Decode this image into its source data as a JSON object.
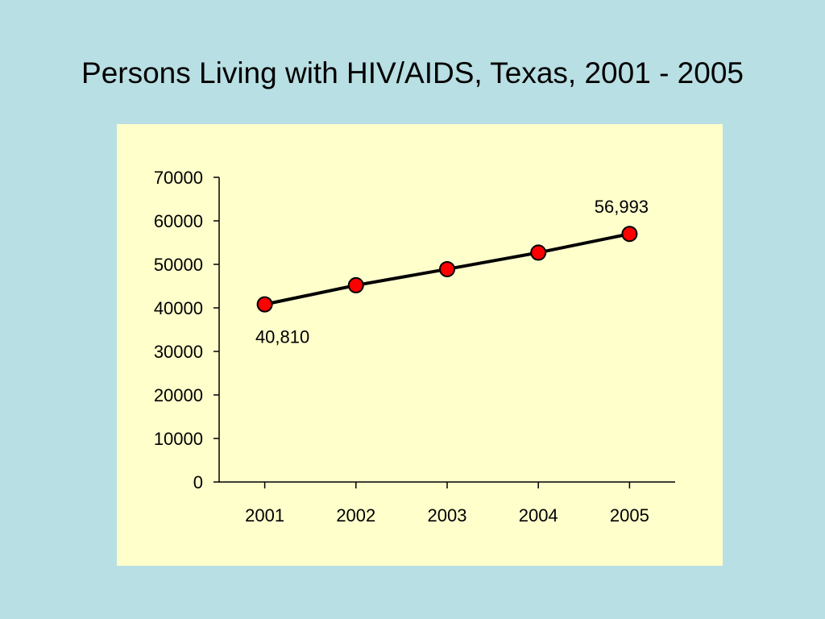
{
  "title": "Persons Living with HIV/AIDS, Texas, 2001 - 2005",
  "colors": {
    "background": "#b8dfe3",
    "panel": "#ffffcc",
    "line": "#000000",
    "marker": "#ff0000"
  },
  "chart_data": {
    "type": "line",
    "title": "Persons Living with HIV/AIDS, Texas, 2001 - 2005",
    "xlabel": "",
    "ylabel": "",
    "categories": [
      "2001",
      "2002",
      "2003",
      "2004",
      "2005"
    ],
    "y_tick_labels": [
      "0",
      "10000",
      "20000",
      "30000",
      "40000",
      "50000",
      "60000",
      "70000"
    ],
    "ylim": [
      0,
      70000
    ],
    "grid": false,
    "legend": "none",
    "series": [
      {
        "values": [
          40810,
          45200,
          48900,
          52700,
          56993
        ]
      }
    ],
    "annotations": [
      {
        "index": 0,
        "text": "40,810",
        "position": "below"
      },
      {
        "index": 4,
        "text": "56,993",
        "position": "above"
      }
    ]
  }
}
